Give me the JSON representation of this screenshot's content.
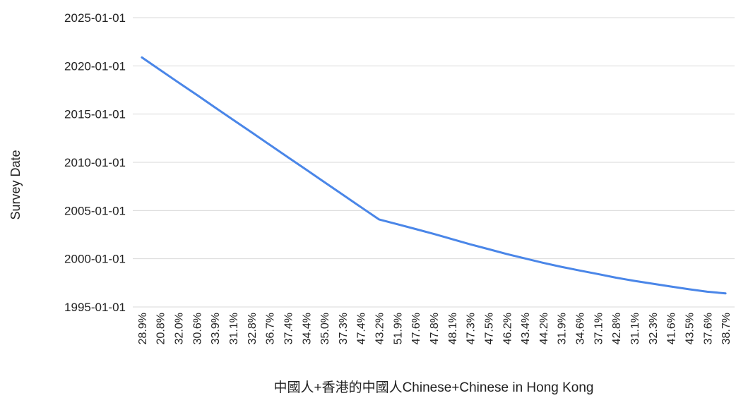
{
  "chart_data": {
    "type": "line",
    "title": "",
    "xlabel": "中國人+香港的中國人Chinese+Chinese in Hong Kong",
    "ylabel": "Survey Date",
    "y_axis_type": "date",
    "ylim": [
      "1995-01-01",
      "2025-01-01"
    ],
    "y_ticks": [
      "1995-01-01",
      "2000-01-01",
      "2005-01-01",
      "2010-01-01",
      "2015-01-01",
      "2020-01-01",
      "2025-01-01"
    ],
    "grid": true,
    "legend": "none",
    "x_tick_labels": [
      "28.9%",
      "20.8%",
      "32.0%",
      "30.6%",
      "33.9%",
      "31.1%",
      "32.8%",
      "36.7%",
      "37.4%",
      "34.4%",
      "35.0%",
      "37.3%",
      "47.4%",
      "43.2%",
      "51.9%",
      "47.6%",
      "47.8%",
      "48.1%",
      "47.3%",
      "47.5%",
      "46.2%",
      "43.4%",
      "44.2%",
      "31.9%",
      "34.6%",
      "37.1%",
      "42.8%",
      "31.1%",
      "32.3%",
      "41.6%",
      "43.5%",
      "37.6%",
      "38.7%"
    ],
    "series": [
      {
        "color": "#4a86e8",
        "y": [
          "2020-11-15",
          "2019-08-01",
          "2018-04-15",
          "2017-01-01",
          "2015-09-15",
          "2014-06-01",
          "2013-02-15",
          "2011-11-01",
          "2010-07-15",
          "2009-04-01",
          "2007-12-15",
          "2006-09-01",
          "2005-05-15",
          "2004-02-01",
          "2003-08-01",
          "2003-02-01",
          "2002-08-01",
          "2002-01-15",
          "2001-07-01",
          "2001-01-01",
          "2000-07-01",
          "2000-01-15",
          "1999-08-01",
          "1999-03-01",
          "1998-10-15",
          "1998-06-01",
          "1998-01-15",
          "1997-09-15",
          "1997-06-01",
          "1997-02-15",
          "1996-11-01",
          "1996-08-01",
          "1996-06-01"
        ]
      }
    ]
  },
  "colors": {
    "line": "#4a86e8",
    "grid": "#d9d9d9",
    "text": "#222222"
  }
}
